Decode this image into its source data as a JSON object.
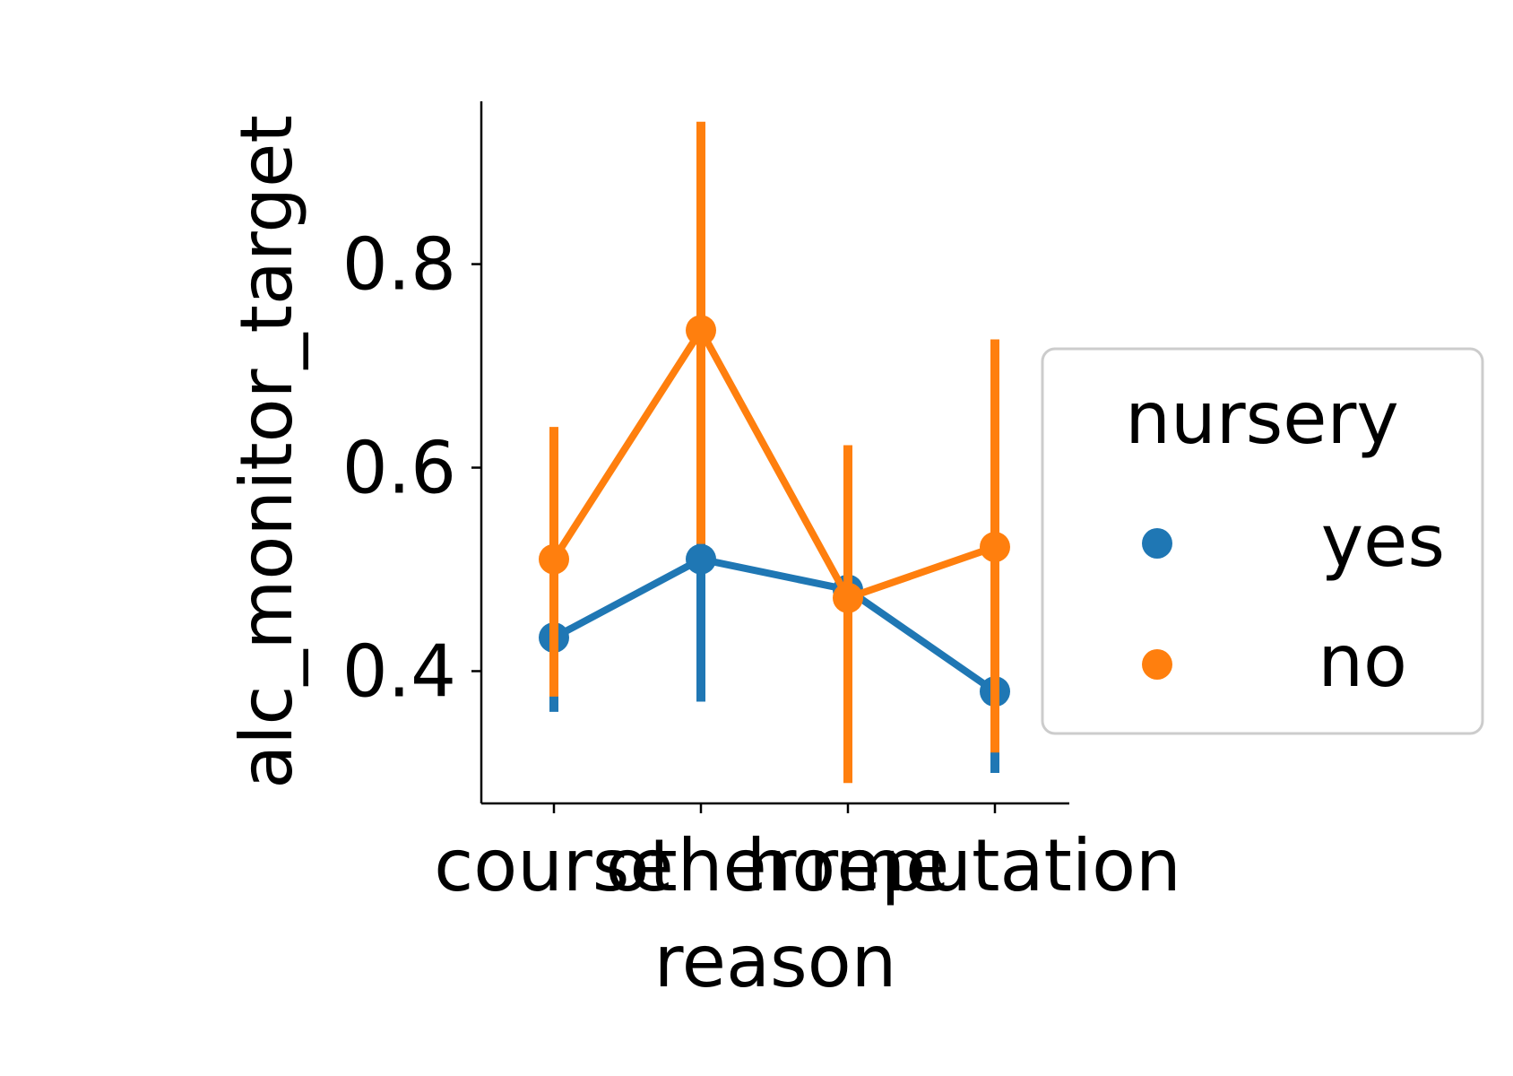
{
  "chart_data": {
    "type": "line",
    "xlabel": "reason",
    "ylabel": "alc_monitor_target",
    "categories": [
      "course",
      "other",
      "home",
      "reputation"
    ],
    "ylim": [
      0.27,
      0.96
    ],
    "yticks": [
      0.4,
      0.6,
      0.8
    ],
    "ytick_labels": [
      "0.4",
      "0.6",
      "0.8"
    ],
    "grid": false,
    "legend": {
      "title": "nursery",
      "placement": "right"
    },
    "series": [
      {
        "name": "yes",
        "color": "#1f77b4",
        "values": [
          0.433,
          0.51,
          0.48,
          0.38
        ],
        "ci_low": [
          0.36,
          0.37,
          0.42,
          0.3
        ],
        "ci_high": [
          0.505,
          0.61,
          0.54,
          0.47
        ]
      },
      {
        "name": "no",
        "color": "#ff7f0e",
        "values": [
          0.51,
          0.735,
          0.472,
          0.522
        ],
        "ci_low": [
          0.375,
          0.525,
          0.29,
          0.32
        ],
        "ci_high": [
          0.64,
          0.94,
          0.622,
          0.726
        ]
      }
    ]
  }
}
